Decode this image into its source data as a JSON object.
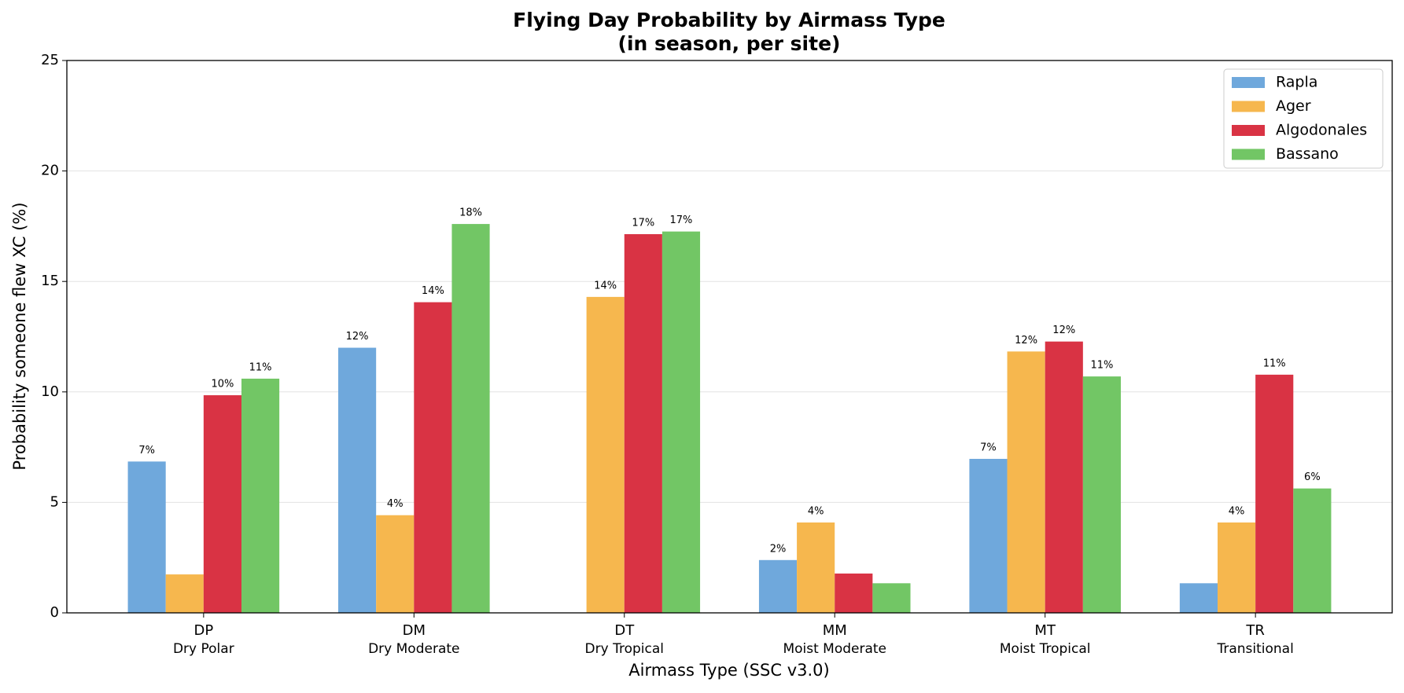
{
  "chart_data": {
    "type": "bar",
    "title": "Flying Day Probability by Airmass Type",
    "subtitle": "(in season, per site)",
    "x_label": "Airmass Type (SSC v3.0)",
    "y_label": "Probability someone flew XC (%)",
    "categories": [
      "DP",
      "DM",
      "DT",
      "MM",
      "MT",
      "TR"
    ],
    "category_names": [
      "Dry Polar",
      "Dry Moderate",
      "Dry Tropical",
      "Moist Moderate",
      "Moist Tropical",
      "Transitional"
    ],
    "series": [
      {
        "name": "Rapla",
        "color": "#6fa8dc",
        "values": [
          6.85,
          12.0,
          null,
          2.39,
          6.97,
          1.34
        ],
        "value_labels": [
          "7%",
          "12%",
          null,
          "2%",
          "7%",
          null
        ]
      },
      {
        "name": "Ager",
        "color": "#f6b74e",
        "values": [
          1.74,
          4.42,
          14.3,
          4.09,
          11.83,
          4.09
        ],
        "value_labels": [
          null,
          "4%",
          "14%",
          "4%",
          "12%",
          "4%"
        ]
      },
      {
        "name": "Algodonales",
        "color": "#d93344",
        "values": [
          9.85,
          14.06,
          17.14,
          1.78,
          12.28,
          10.78
        ],
        "value_labels": [
          "10%",
          "14%",
          "17%",
          null,
          "12%",
          "11%"
        ]
      },
      {
        "name": "Bassano",
        "color": "#72c665",
        "values": [
          10.6,
          17.6,
          17.26,
          1.34,
          10.7,
          5.63
        ],
        "value_labels": [
          "11%",
          "18%",
          "17%",
          null,
          "11%",
          "6%"
        ]
      }
    ],
    "ylim": [
      0,
      25
    ],
    "yticks": [
      0,
      5,
      10,
      15,
      20,
      25
    ],
    "grid": true,
    "legend": "upper right"
  }
}
